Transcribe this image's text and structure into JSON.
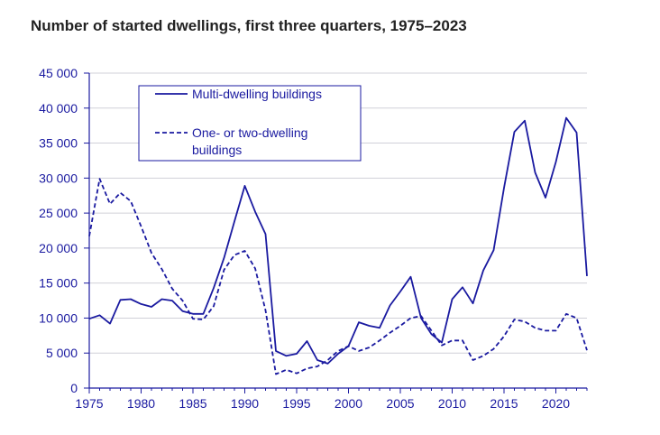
{
  "chart_data": {
    "type": "line",
    "title": "Number of started dwellings, first three quarters, 1975–2023",
    "xlabel": "",
    "ylabel": "",
    "xlim": [
      1975,
      2023
    ],
    "ylim": [
      0,
      45000
    ],
    "x_ticks": [
      1975,
      1980,
      1985,
      1990,
      1995,
      2000,
      2005,
      2010,
      2015,
      2020
    ],
    "x_tick_labels": [
      "1975",
      "1980",
      "1985",
      "1990",
      "1995",
      "2000",
      "2005",
      "2010",
      "2015",
      "2020"
    ],
    "y_ticks": [
      0,
      5000,
      10000,
      15000,
      20000,
      25000,
      30000,
      35000,
      40000,
      45000
    ],
    "y_tick_labels": [
      "0",
      "5 000",
      "10 000",
      "15 000",
      "20 000",
      "25 000",
      "30 000",
      "35 000",
      "40 000",
      "45 000"
    ],
    "grid": "horizontal",
    "legend_position": "top-left",
    "colors": {
      "series": "#1a1aa0",
      "grid": "#d0d0d8",
      "axis": "#1a1aa0"
    },
    "x": [
      1975,
      1976,
      1977,
      1978,
      1979,
      1980,
      1981,
      1982,
      1983,
      1984,
      1985,
      1986,
      1987,
      1988,
      1989,
      1990,
      1991,
      1992,
      1993,
      1994,
      1995,
      1996,
      1997,
      1998,
      1999,
      2000,
      2001,
      2002,
      2003,
      2004,
      2005,
      2006,
      2007,
      2008,
      2009,
      2010,
      2011,
      2012,
      2013,
      2014,
      2015,
      2016,
      2017,
      2018,
      2019,
      2020,
      2021,
      2022,
      2023
    ],
    "series": [
      {
        "name": "Multi-dwelling buildings",
        "style": "solid",
        "values": [
          9900,
          10400,
          9200,
          12600,
          12700,
          12000,
          11600,
          12700,
          12500,
          11000,
          10600,
          10600,
          14300,
          18600,
          23800,
          28900,
          25200,
          22000,
          5300,
          4600,
          4900,
          6700,
          4000,
          3500,
          4900,
          6000,
          9400,
          8900,
          8600,
          11800,
          13800,
          15900,
          10000,
          7700,
          6500,
          12700,
          14400,
          12100,
          16800,
          19700,
          28600,
          36600,
          38200,
          30800,
          27200,
          32300,
          38600,
          36500,
          16000
        ]
      },
      {
        "name": "One- or two-dwelling buildings",
        "style": "dashed",
        "values": [
          21700,
          29900,
          26300,
          27900,
          26700,
          23100,
          19300,
          17000,
          14200,
          12500,
          9900,
          9800,
          11700,
          16900,
          19000,
          19600,
          17100,
          11100,
          2000,
          2600,
          2100,
          2800,
          3100,
          4000,
          5300,
          6000,
          5300,
          5800,
          6800,
          7900,
          8900,
          10000,
          10300,
          8200,
          6100,
          6800,
          6800,
          4000,
          4600,
          5600,
          7400,
          9800,
          9500,
          8600,
          8200,
          8200,
          10600,
          10000,
          5400
        ]
      }
    ]
  }
}
